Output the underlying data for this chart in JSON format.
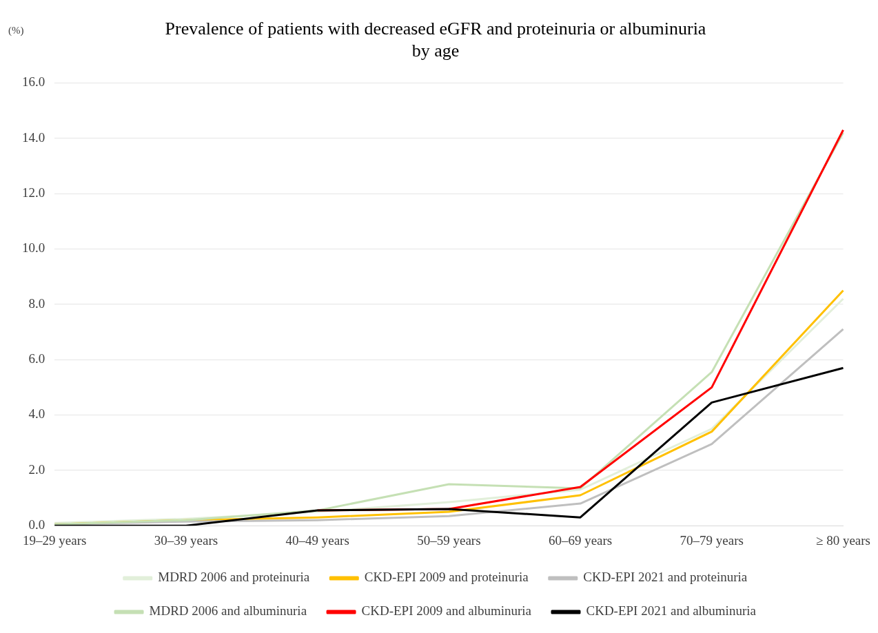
{
  "chart_data": {
    "type": "line",
    "title": "Prevalence of patients with decreased eGFR and proteinuria or albuminuria\nby age",
    "ylabel": "(%)",
    "categories": [
      "19–29 years",
      "30–39 years",
      "40–49 years",
      "50–59 years",
      "60–69 years",
      "70–79 years",
      "≥ 80 years"
    ],
    "series": [
      {
        "name": "MDRD 2006 and proteinuria",
        "color": "#e2efda",
        "values": [
          0.1,
          0.25,
          0.5,
          0.85,
          1.3,
          3.5,
          8.2
        ]
      },
      {
        "name": "CKD-EPI 2009 and proteinuria",
        "color": "#ffc000",
        "values": [
          0.05,
          0.2,
          0.3,
          0.5,
          1.1,
          3.4,
          8.5
        ]
      },
      {
        "name": "CKD-EPI 2021 and proteinuria",
        "color": "#bfbfbf",
        "values": [
          0.05,
          0.15,
          0.2,
          0.35,
          0.8,
          2.95,
          7.1
        ]
      },
      {
        "name": "MDRD 2006 and albuminuria",
        "color": "#c5e0b4",
        "values": [
          0.05,
          0.2,
          0.55,
          1.5,
          1.35,
          5.55,
          14.2
        ]
      },
      {
        "name": "CKD-EPI 2009 and albuminuria",
        "color": "#ff0000",
        "values": [
          null,
          null,
          0.55,
          0.6,
          1.4,
          5.0,
          14.3
        ]
      },
      {
        "name": "CKD-EPI 2021 and albuminuria",
        "color": "#000000",
        "values": [
          0,
          0,
          0.55,
          0.6,
          0.3,
          4.45,
          5.7
        ]
      }
    ],
    "ylim": [
      0,
      16
    ],
    "yticks": [
      {
        "value": 0,
        "label": "0.0"
      },
      {
        "value": 2,
        "label": "2.0"
      },
      {
        "value": 4,
        "label": "4.0"
      },
      {
        "value": 6,
        "label": "6.0"
      },
      {
        "value": 8,
        "label": "8.0"
      },
      {
        "value": 10,
        "label": "10.0"
      },
      {
        "value": 12,
        "label": "12.0"
      },
      {
        "value": 14,
        "label": "14.0"
      },
      {
        "value": 16,
        "label": "16.0"
      }
    ],
    "grid": "y",
    "legend": "bottom",
    "marker": "none",
    "line_style": "solid"
  }
}
